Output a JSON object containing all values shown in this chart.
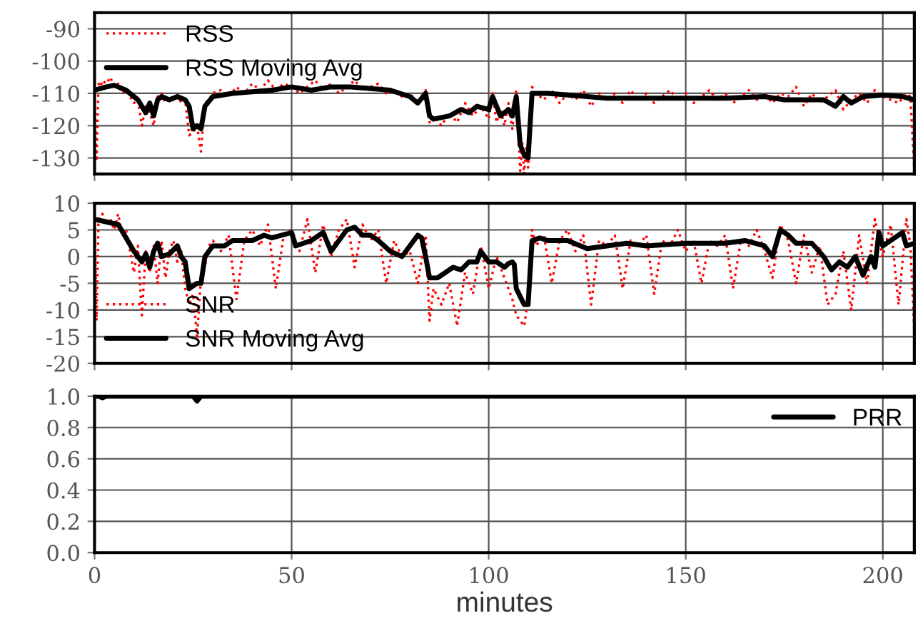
{
  "chart_data": [
    {
      "type": "line",
      "xlim": [
        0,
        208
      ],
      "xticks": [
        0,
        50,
        100,
        150,
        200
      ],
      "ylim": [
        -135,
        -85
      ],
      "yticks": [
        -130,
        -120,
        -110,
        -100,
        -90
      ],
      "grid": true,
      "legend": "top left",
      "tick_labels": "y",
      "series": [
        {
          "name": "RSS",
          "color": "#ff0000",
          "line_style": "dotted",
          "x": [
            0,
            0.5,
            1,
            1.5,
            2,
            3,
            4,
            5,
            6,
            7,
            8,
            9,
            10,
            11,
            12,
            13,
            14,
            15,
            16,
            17,
            18,
            19,
            20,
            21,
            22,
            23,
            24,
            25,
            26,
            27,
            28,
            29,
            30,
            32,
            34,
            36,
            38,
            40,
            42,
            44,
            46,
            48,
            50,
            52,
            54,
            56,
            58,
            60,
            62,
            64,
            66,
            68,
            70,
            72,
            74,
            76,
            78,
            80,
            82,
            84,
            85,
            86,
            88,
            90,
            92,
            94,
            96,
            98,
            100,
            101,
            102,
            103,
            104,
            105,
            106,
            107,
            108,
            108.5,
            109,
            109.5,
            110,
            110.5,
            111,
            112,
            114,
            116,
            118,
            120,
            122,
            124,
            126,
            128,
            130,
            132,
            134,
            136,
            138,
            140,
            142,
            144,
            146,
            148,
            150,
            152,
            154,
            156,
            158,
            160,
            162,
            164,
            166,
            168,
            170,
            172,
            174,
            176,
            178,
            180,
            182,
            184,
            186,
            188,
            190,
            192,
            194,
            196,
            198,
            200,
            202,
            204,
            206,
            207,
            208
          ],
          "values": [
            -110,
            -131,
            -107,
            -108,
            -106,
            -107,
            -105,
            -108,
            -107,
            -110,
            -109,
            -111,
            -113,
            -112,
            -120,
            -114,
            -116,
            -120,
            -111,
            -110,
            -113,
            -111,
            -112,
            -110,
            -113,
            -112,
            -123,
            -122,
            -120,
            -128,
            -113,
            -112,
            -110,
            -109,
            -111,
            -108,
            -110,
            -107,
            -109,
            -106,
            -109,
            -107,
            -108,
            -110,
            -108,
            -106,
            -109,
            -107,
            -110,
            -108,
            -106,
            -109,
            -108,
            -107,
            -110,
            -109,
            -111,
            -110,
            -113,
            -109,
            -119,
            -117,
            -120,
            -116,
            -119,
            -113,
            -117,
            -114,
            -118,
            -110,
            -119,
            -115,
            -120,
            -113,
            -121,
            -109,
            -134,
            -125,
            -135,
            -127,
            -133,
            -126,
            -108,
            -110,
            -112,
            -109,
            -113,
            -110,
            -112,
            -109,
            -114,
            -110,
            -112,
            -110,
            -113,
            -109,
            -112,
            -110,
            -113,
            -111,
            -109,
            -112,
            -110,
            -113,
            -111,
            -109,
            -112,
            -110,
            -113,
            -111,
            -109,
            -112,
            -110,
            -113,
            -110,
            -111,
            -108,
            -114,
            -110,
            -113,
            -111,
            -109,
            -115,
            -112,
            -110,
            -113,
            -109,
            -111,
            -112,
            -113,
            -110,
            -111,
            -134
          ]
        },
        {
          "name": "RSS Moving Avg",
          "color": "#000000",
          "line_style": "solid",
          "x": [
            0,
            3,
            5,
            8,
            11,
            13,
            14,
            15,
            16,
            17,
            19,
            21,
            23,
            24,
            25,
            26,
            27,
            28,
            30,
            35,
            40,
            45,
            50,
            55,
            60,
            65,
            70,
            75,
            80,
            82,
            84,
            85,
            86,
            90,
            93,
            95,
            97,
            100,
            101,
            103,
            105,
            106,
            107,
            108,
            109,
            110,
            111,
            115,
            120,
            130,
            140,
            150,
            160,
            170,
            175,
            180,
            185,
            188,
            190,
            192,
            195,
            200,
            205,
            208
          ],
          "values": [
            -109,
            -108,
            -107.5,
            -109,
            -112,
            -116,
            -113,
            -117,
            -112,
            -111,
            -112,
            -111,
            -112,
            -114,
            -121,
            -120,
            -121,
            -114,
            -111,
            -110,
            -109.5,
            -109,
            -108,
            -109,
            -108,
            -108,
            -108.5,
            -109,
            -111,
            -113,
            -110,
            -117,
            -118,
            -117,
            -115,
            -116,
            -114,
            -115,
            -111,
            -117,
            -115,
            -117,
            -111,
            -126,
            -129,
            -130,
            -110,
            -110,
            -110.5,
            -111.5,
            -111.5,
            -111.5,
            -111.5,
            -111,
            -112,
            -112,
            -112,
            -114,
            -111,
            -113,
            -111,
            -110.5,
            -111,
            -112
          ]
        }
      ]
    },
    {
      "type": "line",
      "xlim": [
        0,
        208
      ],
      "xticks": [
        0,
        50,
        100,
        150,
        200
      ],
      "ylim": [
        -20,
        10
      ],
      "yticks": [
        -20,
        -15,
        -10,
        -5,
        0,
        5,
        10
      ],
      "grid": true,
      "legend": "bottom left",
      "tick_labels": "y",
      "series": [
        {
          "name": "SNR",
          "color": "#ff0000",
          "line_style": "dotted",
          "x": [
            0,
            0.5,
            1,
            2,
            3,
            4,
            5,
            6,
            7,
            8,
            9,
            10,
            11,
            12,
            13,
            14,
            15,
            16,
            17,
            18,
            19,
            20,
            21,
            22,
            23,
            24,
            25,
            26,
            27,
            28,
            29,
            30,
            32,
            34,
            36,
            38,
            40,
            42,
            44,
            46,
            48,
            50,
            52,
            54,
            56,
            58,
            60,
            62,
            64,
            66,
            68,
            70,
            72,
            74,
            76,
            78,
            80,
            82,
            84,
            85,
            86,
            88,
            90,
            92,
            94,
            96,
            98,
            100,
            102,
            104,
            106,
            107,
            108,
            109,
            110,
            111,
            112,
            114,
            116,
            118,
            120,
            122,
            124,
            126,
            128,
            130,
            132,
            134,
            136,
            138,
            140,
            142,
            144,
            146,
            148,
            150,
            152,
            154,
            156,
            158,
            160,
            162,
            164,
            166,
            168,
            170,
            172,
            174,
            176,
            178,
            180,
            182,
            184,
            186,
            188,
            190,
            192,
            194,
            196,
            198,
            200,
            202,
            204,
            206,
            207,
            208
          ],
          "values": [
            8,
            -12,
            7,
            8,
            6,
            7,
            5,
            8,
            4,
            5,
            1,
            -3,
            2,
            -11,
            1,
            -3,
            2,
            -5,
            3,
            -4,
            1,
            3,
            -1,
            1,
            -6,
            -9,
            -7,
            -15,
            -4,
            -2,
            2,
            3,
            1,
            4,
            -8,
            3,
            5,
            2,
            6,
            -6,
            4,
            5,
            1,
            7,
            -3,
            6,
            0,
            5,
            7,
            -2,
            6,
            3,
            5,
            -5,
            3,
            0,
            1,
            -5,
            4,
            -12,
            -6,
            -9,
            -5,
            -13,
            -3,
            -7,
            2,
            -6,
            0,
            -4,
            -8,
            -11,
            -12,
            -13,
            -8,
            5,
            2,
            4,
            -5,
            3,
            5,
            1,
            4,
            -9,
            3,
            2,
            4,
            -6,
            3,
            2,
            4,
            -7,
            3,
            2,
            5,
            1,
            3,
            -5,
            3,
            2,
            4,
            -6,
            3,
            2,
            5,
            1,
            -4,
            6,
            3,
            -5,
            4,
            -3,
            2,
            -9,
            -7,
            1,
            -10,
            4,
            -5,
            7,
            0,
            6,
            -9,
            7,
            2,
            -14
          ]
        },
        {
          "name": "SNR Moving Avg",
          "color": "#000000",
          "line_style": "solid",
          "x": [
            0,
            3,
            6,
            8,
            10,
            12,
            13,
            14,
            15,
            16,
            17,
            19,
            21,
            22,
            23,
            24,
            26,
            27,
            28,
            30,
            33,
            35,
            40,
            43,
            45,
            50,
            51,
            55,
            58,
            60,
            62,
            64,
            66,
            68,
            70,
            72,
            75,
            78,
            80,
            81,
            82,
            83,
            84,
            85,
            87,
            89,
            91,
            93,
            95,
            97,
            98,
            100,
            102,
            104,
            105,
            106,
            106.5,
            107,
            109,
            110,
            111,
            113,
            115,
            120,
            125,
            130,
            135,
            140,
            150,
            160,
            165,
            170,
            172,
            174,
            176,
            178,
            182,
            185,
            187,
            189,
            191,
            193,
            195,
            197,
            198,
            199,
            200,
            202,
            205,
            206,
            208
          ],
          "values": [
            7,
            6.5,
            6,
            3.5,
            1,
            -1,
            0.5,
            -2,
            1,
            2.5,
            0,
            0.5,
            2,
            0,
            -1,
            -6,
            -5,
            -5,
            0,
            2,
            2,
            3,
            3,
            4,
            3.5,
            4.5,
            2,
            3,
            4.5,
            1,
            3,
            5,
            5.5,
            4,
            4,
            3,
            1,
            0,
            2,
            3,
            4,
            3.5,
            0,
            -4,
            -4,
            -3,
            -2,
            -2.5,
            -1,
            -1,
            1,
            -1,
            -1,
            -2,
            -1.3,
            -1,
            -1.5,
            -6,
            -9,
            -9,
            3,
            3.5,
            3,
            3,
            1.5,
            2,
            2.5,
            2,
            2.5,
            2.5,
            3,
            2,
            0,
            5,
            4,
            2.5,
            2.5,
            0,
            -2.5,
            -1,
            -2,
            0,
            -3.5,
            0,
            -2,
            4.5,
            2,
            3,
            4.5,
            2,
            2.5
          ]
        }
      ]
    },
    {
      "type": "line",
      "xlim": [
        0,
        208
      ],
      "xticks": [
        0,
        50,
        100,
        150,
        200
      ],
      "ylim": [
        0,
        1.0
      ],
      "yticks": [
        {
          "value": 0,
          "label": "0.0"
        },
        0.2,
        0.4,
        0.6,
        0.8,
        {
          "value": 1,
          "label": "1.0"
        }
      ],
      "grid": true,
      "legend": "top right",
      "xlabel": "minutes",
      "series": [
        {
          "name": "PRR",
          "color": "#000000",
          "line_style": "solid",
          "x": [
            0,
            1,
            2,
            3,
            25,
            26,
            27,
            208
          ],
          "values": [
            1,
            1,
            0.99,
            1,
            1,
            0.97,
            1,
            1
          ]
        }
      ]
    }
  ]
}
